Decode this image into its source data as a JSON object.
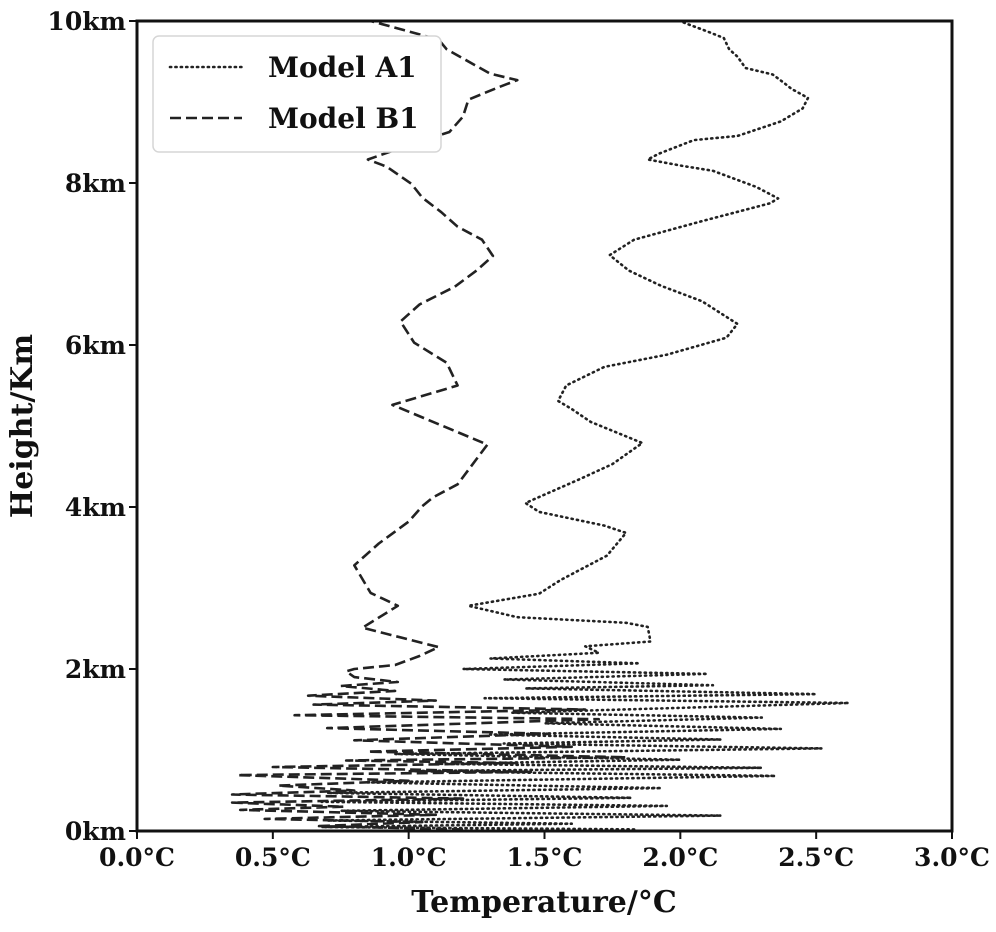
{
  "chart_data": {
    "type": "line",
    "orientation": "vertical-profile",
    "title": "",
    "xlabel": "Temperature/°C",
    "ylabel": "Height/Km",
    "xlim": [
      0,
      3
    ],
    "ylim": [
      0,
      10
    ],
    "x_ticks": [
      {
        "value": 0.0,
        "label": "0.0°C"
      },
      {
        "value": 0.5,
        "label": "0.5°C"
      },
      {
        "value": 1.0,
        "label": "1.0°C"
      },
      {
        "value": 1.5,
        "label": "1.5°C"
      },
      {
        "value": 2.0,
        "label": "2.0°C"
      },
      {
        "value": 2.5,
        "label": "2.5°C"
      },
      {
        "value": 3.0,
        "label": "3.0°C"
      }
    ],
    "y_ticks": [
      {
        "value": 0,
        "label": "0km"
      },
      {
        "value": 2,
        "label": "2km"
      },
      {
        "value": 4,
        "label": "4km"
      },
      {
        "value": 6,
        "label": "6km"
      },
      {
        "value": 8,
        "label": "8km"
      },
      {
        "value": 10,
        "label": "10km"
      }
    ],
    "grid": false,
    "legend_position": "top-left",
    "series": [
      {
        "name": "Model A1",
        "style": "dotted",
        "color": "#222222",
        "points": [
          [
            1.83,
            0.02
          ],
          [
            0.68,
            0.05
          ],
          [
            1.6,
            0.09
          ],
          [
            0.7,
            0.13
          ],
          [
            2.15,
            0.19
          ],
          [
            0.75,
            0.25
          ],
          [
            1.95,
            0.31
          ],
          [
            0.68,
            0.36
          ],
          [
            1.82,
            0.41
          ],
          [
            0.7,
            0.47
          ],
          [
            1.93,
            0.53
          ],
          [
            0.85,
            0.6
          ],
          [
            2.35,
            0.68
          ],
          [
            1.0,
            0.74
          ],
          [
            2.3,
            0.78
          ],
          [
            1.1,
            0.83
          ],
          [
            2.0,
            0.88
          ],
          [
            0.95,
            0.95
          ],
          [
            2.52,
            1.02
          ],
          [
            1.35,
            1.08
          ],
          [
            2.15,
            1.13
          ],
          [
            1.3,
            1.19
          ],
          [
            2.37,
            1.26
          ],
          [
            1.5,
            1.33
          ],
          [
            2.3,
            1.4
          ],
          [
            1.38,
            1.46
          ],
          [
            2.62,
            1.58
          ],
          [
            1.28,
            1.64
          ],
          [
            2.5,
            1.69
          ],
          [
            1.43,
            1.76
          ],
          [
            2.12,
            1.8
          ],
          [
            1.35,
            1.87
          ],
          [
            2.1,
            1.94
          ],
          [
            1.2,
            2.0
          ],
          [
            1.85,
            2.07
          ],
          [
            1.3,
            2.13
          ],
          [
            1.7,
            2.2
          ],
          [
            1.65,
            2.28
          ],
          [
            1.89,
            2.34
          ],
          [
            1.88,
            2.52
          ],
          [
            1.8,
            2.57
          ],
          [
            1.4,
            2.64
          ],
          [
            1.22,
            2.78
          ],
          [
            1.48,
            2.93
          ],
          [
            1.56,
            3.1
          ],
          [
            1.73,
            3.4
          ],
          [
            1.8,
            3.68
          ],
          [
            1.72,
            3.77
          ],
          [
            1.48,
            3.94
          ],
          [
            1.43,
            4.05
          ],
          [
            1.62,
            4.33
          ],
          [
            1.75,
            4.53
          ],
          [
            1.86,
            4.79
          ],
          [
            1.67,
            5.05
          ],
          [
            1.6,
            5.21
          ],
          [
            1.55,
            5.31
          ],
          [
            1.58,
            5.5
          ],
          [
            1.72,
            5.73
          ],
          [
            1.95,
            5.88
          ],
          [
            2.17,
            6.09
          ],
          [
            2.21,
            6.26
          ],
          [
            2.08,
            6.54
          ],
          [
            1.93,
            6.73
          ],
          [
            1.81,
            6.92
          ],
          [
            1.74,
            7.11
          ],
          [
            1.83,
            7.3
          ],
          [
            2.08,
            7.53
          ],
          [
            2.33,
            7.75
          ],
          [
            2.36,
            7.81
          ],
          [
            2.28,
            7.95
          ],
          [
            2.12,
            8.15
          ],
          [
            2.01,
            8.21
          ],
          [
            1.88,
            8.29
          ],
          [
            1.92,
            8.36
          ],
          [
            2.05,
            8.53
          ],
          [
            2.21,
            8.58
          ],
          [
            2.37,
            8.76
          ],
          [
            2.45,
            8.92
          ],
          [
            2.47,
            9.05
          ],
          [
            2.41,
            9.16
          ],
          [
            2.38,
            9.24
          ],
          [
            2.34,
            9.34
          ],
          [
            2.24,
            9.42
          ],
          [
            2.21,
            9.56
          ],
          [
            2.18,
            9.65
          ],
          [
            2.16,
            9.79
          ],
          [
            2.1,
            9.87
          ],
          [
            2.02,
            9.97
          ],
          [
            2.0,
            10.0
          ]
        ]
      },
      {
        "name": "Model B1",
        "style": "dashed",
        "color": "#222222",
        "points": [
          [
            1.2,
            0.02
          ],
          [
            0.67,
            0.06
          ],
          [
            1.05,
            0.11
          ],
          [
            0.47,
            0.15
          ],
          [
            1.1,
            0.2
          ],
          [
            0.38,
            0.26
          ],
          [
            0.76,
            0.3
          ],
          [
            0.35,
            0.35
          ],
          [
            1.2,
            0.4
          ],
          [
            0.35,
            0.45
          ],
          [
            0.8,
            0.5
          ],
          [
            0.52,
            0.56
          ],
          [
            1.0,
            0.62
          ],
          [
            0.37,
            0.69
          ],
          [
            1.45,
            0.73
          ],
          [
            0.5,
            0.79
          ],
          [
            1.4,
            0.84
          ],
          [
            0.77,
            0.87
          ],
          [
            1.8,
            0.91
          ],
          [
            0.85,
            0.98
          ],
          [
            1.6,
            1.04
          ],
          [
            0.8,
            1.12
          ],
          [
            1.52,
            1.2
          ],
          [
            0.7,
            1.27
          ],
          [
            1.7,
            1.38
          ],
          [
            0.58,
            1.43
          ],
          [
            1.65,
            1.5
          ],
          [
            0.65,
            1.56
          ],
          [
            1.1,
            1.61
          ],
          [
            0.63,
            1.67
          ],
          [
            0.95,
            1.73
          ],
          [
            0.75,
            1.79
          ],
          [
            0.96,
            1.84
          ],
          [
            0.8,
            1.9
          ],
          [
            0.77,
            1.97
          ],
          [
            0.8,
            2.0
          ],
          [
            0.95,
            2.05
          ],
          [
            1.04,
            2.16
          ],
          [
            1.11,
            2.27
          ],
          [
            0.83,
            2.51
          ],
          [
            0.96,
            2.78
          ],
          [
            0.86,
            2.94
          ],
          [
            0.8,
            3.28
          ],
          [
            0.89,
            3.55
          ],
          [
            1.0,
            3.82
          ],
          [
            1.05,
            4.01
          ],
          [
            1.09,
            4.12
          ],
          [
            1.18,
            4.28
          ],
          [
            1.29,
            4.77
          ],
          [
            0.94,
            5.26
          ],
          [
            1.18,
            5.5
          ],
          [
            1.14,
            5.78
          ],
          [
            1.02,
            6.03
          ],
          [
            0.97,
            6.29
          ],
          [
            1.04,
            6.5
          ],
          [
            1.17,
            6.72
          ],
          [
            1.25,
            6.92
          ],
          [
            1.31,
            7.1
          ],
          [
            1.27,
            7.3
          ],
          [
            1.18,
            7.46
          ],
          [
            1.12,
            7.64
          ],
          [
            1.05,
            7.82
          ],
          [
            1.01,
            7.99
          ],
          [
            0.92,
            8.2
          ],
          [
            0.85,
            8.29
          ],
          [
            1.02,
            8.49
          ],
          [
            1.15,
            8.63
          ],
          [
            1.2,
            8.82
          ],
          [
            1.22,
            9.03
          ],
          [
            1.33,
            9.18
          ],
          [
            1.4,
            9.27
          ],
          [
            1.3,
            9.35
          ],
          [
            1.14,
            9.65
          ],
          [
            1.11,
            9.77
          ],
          [
            0.86,
            10.0
          ]
        ]
      }
    ]
  }
}
